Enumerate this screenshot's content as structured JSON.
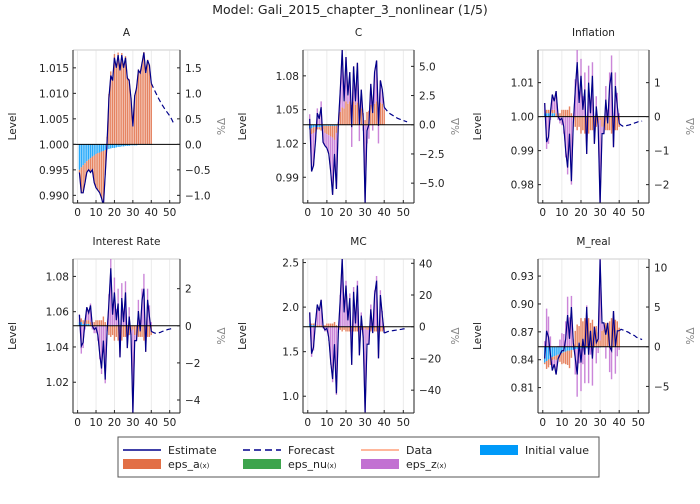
{
  "title": "Model: Gali_2015_chapter_3_nonlinear  (1/5)",
  "colors": {
    "estimate": "#00008b",
    "forecast": "#00008b",
    "data": "#ff9f7a",
    "eps_a": "#e26f46",
    "eps_nu": "#3da44d",
    "eps_z": "#c271d2",
    "initial": "#009af9"
  },
  "legend": {
    "placement": "bottom",
    "items": [
      {
        "key": "estimate",
        "label": "Estimate",
        "sub": "",
        "kind": "line"
      },
      {
        "key": "forecast",
        "label": "Forecast",
        "sub": "",
        "kind": "dash"
      },
      {
        "key": "data",
        "label": "Data",
        "sub": "",
        "kind": "line"
      },
      {
        "key": "initial",
        "label": "Initial value",
        "sub": "",
        "kind": "patch"
      },
      {
        "key": "eps_a",
        "label": "eps_a",
        "sub": "(x)",
        "kind": "patch"
      },
      {
        "key": "eps_nu",
        "label": "eps_nu",
        "sub": "(x)",
        "kind": "patch"
      },
      {
        "key": "eps_z",
        "label": "eps_z",
        "sub": "(x)",
        "kind": "patch"
      }
    ]
  },
  "chart_data": [
    {
      "type": "bar+line",
      "title": "A",
      "ylabel": "Level",
      "ylabel_right": "%Δ",
      "xlim": [
        -2.5,
        55.6
      ],
      "ylim_pct": [
        -1.15,
        1.85
      ],
      "steady_state": 1.0,
      "xticks": [
        "0",
        "10",
        "20",
        "30",
        "40",
        "50"
      ],
      "yticks_left": [
        "0.990",
        "0.995",
        "1.000",
        "1.005",
        "1.010",
        "1.015"
      ],
      "yticks_right": [
        "−1.0",
        "−0.5",
        "0.0",
        "0.5",
        "1.0",
        "1.5"
      ],
      "grid": true,
      "estimate": [
        -0.55,
        -0.95,
        -0.95,
        -0.75,
        -0.55,
        -0.5,
        -0.55,
        -0.5,
        -0.75,
        -0.85,
        -0.9,
        -0.95,
        -1.05,
        -1.2,
        -0.6,
        0.05,
        0.9,
        1.35,
        1.25,
        1.7,
        1.5,
        1.75,
        1.45,
        1.75,
        1.5,
        1.7,
        1.3,
        1.25,
        0.9,
        0.35,
        0.95,
        1.1,
        1.45,
        1.4,
        1.6,
        1.8,
        1.4,
        1.65,
        1.55,
        1.2
      ],
      "forecast": [
        1.2,
        1.12,
        1.04,
        0.97,
        0.9,
        0.83,
        0.77,
        0.71,
        0.66,
        0.61,
        0.56,
        0.5,
        0.42
      ],
      "initial": [
        -0.5,
        -0.45,
        -0.41,
        -0.37,
        -0.33,
        -0.3,
        -0.27,
        -0.24,
        -0.22,
        -0.19,
        -0.17,
        -0.16,
        -0.14,
        -0.13,
        -0.11,
        -0.1,
        -0.09,
        -0.08,
        -0.07,
        -0.07,
        -0.06,
        -0.05,
        -0.05,
        -0.04,
        -0.04,
        -0.03,
        -0.03,
        -0.03,
        -0.02,
        -0.02,
        -0.02,
        -0.02,
        -0.01,
        -0.01,
        -0.01,
        -0.01,
        -0.01,
        -0.01,
        -0.01,
        -0.01
      ],
      "eps_a": [
        -0.05,
        -0.5,
        -0.54,
        -0.38,
        -0.22,
        -0.2,
        -0.28,
        -0.26,
        -0.53,
        -0.66,
        -0.73,
        -0.79,
        -0.91,
        -1.07,
        -0.49,
        0.15,
        0.99,
        1.43,
        1.32,
        1.77,
        1.56,
        1.8,
        1.5,
        1.79,
        1.54,
        1.73,
        1.33,
        1.28,
        0.92,
        0.37,
        0.97,
        1.12,
        1.46,
        1.41,
        1.61,
        1.81,
        1.41,
        1.66,
        1.56,
        1.21
      ],
      "eps_z": []
    },
    {
      "type": "bar+line",
      "title": "C",
      "ylabel": "Level",
      "ylabel_right": "%Δ",
      "xlim": [
        -2.5,
        55.6
      ],
      "ylim_pct": [
        -6.7,
        6.4
      ],
      "steady_state": 1.0366,
      "xticks": [
        "0",
        "10",
        "20",
        "30",
        "40",
        "50"
      ],
      "yticks_left": [
        "0.99",
        "1.02",
        "1.05",
        "1.08"
      ],
      "yticks_right": [
        "−5.0",
        "−2.5",
        "0.0",
        "2.5",
        "5.0"
      ],
      "grid": true,
      "estimate": [
        0.5,
        -4.0,
        -3.5,
        -1.5,
        1.0,
        0.5,
        1.5,
        -1.5,
        -1.8,
        -2.0,
        -2.5,
        -4.0,
        -6.0,
        -2.5,
        -5.5,
        0.0,
        3.0,
        6.4,
        2.0,
        5.8,
        2.5,
        4.5,
        -0.2,
        5.0,
        2.0,
        5.3,
        0.0,
        3.0,
        0.5,
        -6.7,
        -0.5,
        0.0,
        3.5,
        1.0,
        4.5,
        5.5,
        -0.1,
        3.8,
        3.0,
        1.5
      ],
      "forecast": [
        1.5,
        1.3,
        1.1,
        0.95,
        0.85,
        0.75,
        0.65,
        0.55,
        0.48,
        0.42,
        0.36,
        0.3,
        0.25
      ],
      "initial": [
        -0.3,
        -0.3,
        -0.2,
        -0.2,
        -0.2,
        -0.2,
        -0.2,
        -0.1,
        -0.1,
        -0.1,
        -0.1,
        -0.1,
        -0.1,
        -0.1,
        -0.1,
        -0.1,
        0,
        0,
        0,
        0,
        0,
        0,
        0,
        0,
        0,
        0,
        0,
        0,
        0,
        0,
        0,
        0,
        0,
        0,
        0,
        0,
        0,
        0,
        0,
        0
      ],
      "eps_a": [
        -0.1,
        -0.5,
        -0.5,
        -0.4,
        -0.2,
        -0.2,
        -0.3,
        -0.3,
        -0.6,
        -0.7,
        -0.8,
        -0.9,
        -1.0,
        -1.2,
        -0.6,
        0.2,
        1.1,
        1.5,
        1.4,
        2.0,
        1.8,
        2.0,
        1.7,
        2.0,
        1.7,
        1.9,
        1.4,
        1.4,
        1.0,
        0.4,
        1.1,
        1.2,
        1.7,
        1.5,
        1.8,
        2.0,
        1.5,
        1.9,
        1.8,
        1.3
      ],
      "eps_z": [
        0.9,
        -3.2,
        -2.8,
        -0.9,
        1.4,
        0.9,
        2.0,
        -1.1,
        -1.1,
        -1.2,
        -1.6,
        -3.0,
        -4.9,
        -1.2,
        -4.8,
        -0.1,
        1.9,
        4.9,
        0.6,
        3.8,
        0.7,
        2.5,
        -1.9,
        3.0,
        0.3,
        3.4,
        -1.4,
        1.6,
        -0.5,
        -7.1,
        -1.6,
        -1.2,
        1.8,
        -0.5,
        2.7,
        3.5,
        -1.6,
        1.9,
        1.2,
        0.2
      ]
    },
    {
      "type": "bar+line",
      "title": "Inflation",
      "ylabel": "Level",
      "ylabel_right": "%Δ",
      "xlim": [
        -2.5,
        55.6
      ],
      "ylim_pct": [
        -2.54,
        1.96
      ],
      "steady_state": 1.0,
      "xticks": [
        "0",
        "10",
        "20",
        "30",
        "40",
        "50"
      ],
      "yticks_left": [
        "0.98",
        "0.99",
        "1.00",
        "1.01"
      ],
      "yticks_right": [
        "−2",
        "−1",
        "0",
        "1"
      ],
      "grid": true,
      "estimate": [
        0.4,
        -0.75,
        -0.6,
        0.1,
        0.65,
        0.45,
        0.75,
        0.0,
        -0.1,
        -0.05,
        -0.3,
        -1.0,
        -1.5,
        -0.5,
        -1.9,
        -0.2,
        0.8,
        1.6,
        0.4,
        1.2,
        0.2,
        0.8,
        -1.1,
        1.0,
        0.1,
        1.2,
        -0.8,
        0.3,
        -0.3,
        -2.6,
        -0.5,
        -0.5,
        0.5,
        -0.2,
        0.9,
        1.3,
        -0.9,
        0.9,
        0.3,
        -0.2
      ],
      "forecast": [
        -0.2,
        -0.25,
        -0.28,
        -0.27,
        -0.26,
        -0.25,
        -0.23,
        -0.21,
        -0.19,
        -0.17,
        -0.15,
        -0.14,
        -0.13
      ],
      "initial": [
        0.1,
        0.1,
        0.1,
        0.1,
        0.1,
        0.1,
        0,
        0,
        0,
        0,
        0,
        0,
        0,
        0,
        0,
        0,
        0,
        0,
        0,
        0,
        0,
        0,
        0,
        0,
        0,
        0,
        0,
        0,
        0,
        0,
        0,
        0,
        0,
        0,
        0,
        0,
        0,
        0,
        0,
        0
      ],
      "eps_a": [
        0,
        0.1,
        0.1,
        0.1,
        0.1,
        0.1,
        0.1,
        0.1,
        0.1,
        0.2,
        0.2,
        0.2,
        0.2,
        0.3,
        0.1,
        -0.1,
        -0.3,
        -0.4,
        -0.3,
        -0.5,
        -0.4,
        -0.5,
        -0.4,
        -0.5,
        -0.4,
        -0.4,
        -0.3,
        -0.3,
        -0.2,
        -0.1,
        -0.3,
        -0.3,
        -0.4,
        -0.4,
        -0.4,
        -0.5,
        -0.4,
        -0.4,
        -0.4,
        -0.3
      ],
      "eps_z": [
        0.3,
        -0.95,
        -0.8,
        -0.1,
        0.45,
        0.25,
        0.65,
        -0.1,
        -0.2,
        -0.25,
        -0.5,
        -1.2,
        -1.7,
        -0.8,
        -2.0,
        -0.1,
        1.1,
        2.0,
        0.7,
        1.7,
        0.6,
        1.3,
        -0.7,
        1.5,
        0.5,
        1.6,
        -0.5,
        0.6,
        -0.1,
        -2.5,
        -0.2,
        -0.2,
        0.9,
        0.2,
        1.3,
        1.8,
        -0.5,
        1.3,
        0.7,
        0.1
      ]
    },
    {
      "type": "bar+line",
      "title": "Interest Rate",
      "ylabel": "Level",
      "ylabel_right": "%Δ",
      "xlim": [
        -2.5,
        55.6
      ],
      "ylim_pct": [
        -4.7,
        3.6
      ],
      "steady_state": 1.052,
      "xticks": [
        "0",
        "10",
        "20",
        "30",
        "40",
        "50"
      ],
      "yticks_left": [
        "1.02",
        "1.04",
        "1.06",
        "1.08"
      ],
      "yticks_right": [
        "−4",
        "−2",
        "0",
        "2"
      ],
      "grid": true,
      "estimate": [
        0.6,
        -1.1,
        -0.9,
        0.2,
        1.0,
        0.7,
        1.1,
        0.0,
        -0.2,
        -0.1,
        -0.5,
        -1.5,
        -2.3,
        -0.8,
        -2.9,
        -0.3,
        1.2,
        3.1,
        0.6,
        1.8,
        0.3,
        1.2,
        -1.7,
        1.5,
        0.2,
        1.8,
        -1.2,
        0.5,
        -0.5,
        -4.7,
        -0.8,
        -0.8,
        0.8,
        -0.3,
        1.4,
        2.0,
        -1.4,
        1.4,
        0.5,
        -0.3
      ],
      "forecast": [
        -0.3,
        -0.35,
        -0.4,
        -0.4,
        -0.38,
        -0.35,
        -0.3,
        -0.27,
        -0.24,
        -0.2,
        -0.18,
        -0.15,
        -0.13
      ],
      "initial": [
        0.2,
        0.2,
        0.1,
        0.1,
        0.1,
        0.1,
        0,
        0,
        0,
        0,
        0,
        0,
        0,
        0,
        0,
        0,
        0,
        0,
        0,
        0,
        0,
        0,
        0,
        0,
        0,
        0,
        0,
        0,
        0,
        0,
        0,
        0,
        0,
        0,
        0,
        0,
        0,
        0,
        0,
        0
      ],
      "eps_a": [
        0,
        0.2,
        0.2,
        0.2,
        0.2,
        0.2,
        0.2,
        0.2,
        0.2,
        0.3,
        0.3,
        0.3,
        0.3,
        0.5,
        0.2,
        -0.2,
        -0.5,
        -0.6,
        -0.5,
        -0.8,
        -0.6,
        -0.8,
        -0.6,
        -0.8,
        -0.6,
        -0.6,
        -0.5,
        -0.5,
        -0.3,
        -0.2,
        -0.5,
        -0.5,
        -0.6,
        -0.6,
        -0.6,
        -0.8,
        -0.6,
        -0.6,
        -0.6,
        -0.5
      ],
      "eps_z": [
        0.4,
        -1.5,
        -1.2,
        -0.2,
        0.7,
        0.4,
        1.0,
        -0.2,
        -0.4,
        -0.4,
        -0.8,
        -1.8,
        -2.6,
        -1.3,
        -3.1,
        -0.1,
        1.7,
        3.7,
        1.1,
        2.6,
        0.9,
        2.0,
        -1.1,
        2.3,
        0.8,
        2.4,
        -0.7,
        1.0,
        -0.2,
        -4.5,
        -0.3,
        -0.3,
        1.4,
        0.3,
        2.0,
        2.8,
        -0.8,
        2.0,
        1.1,
        0.2
      ]
    },
    {
      "type": "bar+line",
      "title": "MC",
      "ylabel": "Level",
      "ylabel_right": "%Δ",
      "xlim": [
        -2.5,
        55.6
      ],
      "ylim_pct": [
        -54.4,
        42.7
      ],
      "steady_state": 1.78,
      "xticks": [
        "0",
        "10",
        "20",
        "30",
        "40",
        "50"
      ],
      "yticks_left": [
        "1.0",
        "1.5",
        "2.0",
        "2.5"
      ],
      "yticks_right": [
        "−40",
        "−20",
        "0",
        "20",
        "40"
      ],
      "grid": true,
      "estimate": [
        9,
        -17,
        -13,
        2,
        14,
        10,
        17,
        0,
        -2,
        -1,
        -7,
        -22,
        -33,
        -11,
        -42,
        -4,
        18,
        43,
        9,
        26,
        4,
        18,
        -24,
        22,
        2,
        26,
        -18,
        7,
        -7,
        -54,
        -11,
        -11,
        11,
        -4,
        20,
        29,
        -20,
        20,
        7,
        -4
      ],
      "forecast": [
        -4,
        -3.5,
        -3,
        -2.8,
        -2.6,
        -2.4,
        -2.2,
        -2.0,
        -1.8,
        -1.6,
        -1.4,
        -1.3,
        -1.2
      ],
      "initial": [
        2,
        1,
        1,
        1,
        0,
        0,
        0,
        0,
        0,
        0,
        0,
        0,
        0,
        0,
        0,
        0,
        0,
        0,
        0,
        0,
        0,
        0,
        0,
        0,
        0,
        0,
        0,
        0,
        0,
        0,
        0,
        0,
        0,
        0,
        0,
        0,
        0,
        0,
        0,
        0
      ],
      "eps_a": [
        0,
        1,
        1,
        1,
        1,
        1,
        1,
        1,
        1,
        2,
        2,
        2,
        2,
        3,
        1,
        -1,
        -2,
        -3,
        -2,
        -3,
        -3,
        -3,
        -3,
        -3,
        -3,
        -3,
        -2,
        -2,
        -2,
        -1,
        -2,
        -2,
        -3,
        -3,
        -3,
        -3,
        -3,
        -3,
        -3,
        -2
      ],
      "eps_z": [
        7,
        -19,
        -15,
        0,
        13,
        9,
        16,
        -1,
        -3,
        -3,
        -9,
        -24,
        -35,
        -14,
        -43,
        -3,
        20,
        46,
        11,
        29,
        7,
        21,
        -21,
        25,
        5,
        29,
        -16,
        9,
        -5,
        -53,
        -9,
        -9,
        14,
        -1,
        23,
        32,
        -17,
        23,
        10,
        -2
      ]
    },
    {
      "type": "bar+line",
      "title": "M_real",
      "ylabel": "Level",
      "ylabel_right": "%Δ",
      "xlim": [
        -2.5,
        55.6
      ],
      "ylim_pct": [
        -8.35,
        11.05
      ],
      "steady_state": 0.854,
      "xticks": [
        "0",
        "10",
        "20",
        "30",
        "40",
        "50"
      ],
      "yticks_left": [
        "0.81",
        "0.84",
        "0.87",
        "0.90",
        "0.93"
      ],
      "yticks_right": [
        "−5",
        "0",
        "5",
        "10"
      ],
      "grid": true,
      "estimate": [
        -1.5,
        2.0,
        1.2,
        -1.0,
        -3.0,
        -2.2,
        -3.5,
        -1.5,
        -1.0,
        -0.5,
        -0.5,
        1.0,
        4.0,
        1.0,
        5.0,
        0.5,
        -1.5,
        -3.5,
        0.5,
        -2.0,
        1.0,
        -1.0,
        5.0,
        -1.0,
        2.0,
        -1.5,
        2.5,
        0.5,
        1.0,
        11.0,
        3.0,
        3.0,
        1.5,
        3.0,
        0.0,
        -0.5,
        4.5,
        0.0,
        2.0,
        2.0
      ],
      "forecast": [
        2.0,
        2.2,
        2.1,
        2.0,
        1.9,
        1.8,
        1.6,
        1.5,
        1.4,
        1.2,
        1.1,
        1.0,
        0.9
      ],
      "initial": [
        -2.0,
        -1.8,
        -1.6,
        -1.5,
        -1.3,
        -1.2,
        -1.1,
        -1.0,
        -0.9,
        -0.8,
        -0.7,
        -0.6,
        -0.5,
        -0.5,
        -0.4,
        -0.4,
        -0.3,
        -0.3,
        -0.3,
        -0.2,
        -0.2,
        -0.2,
        -0.2,
        -0.1,
        -0.1,
        -0.1,
        -0.1,
        -0.1,
        -0.1,
        -0.1,
        0,
        0,
        0,
        0,
        0,
        0,
        0,
        0,
        0,
        0
      ],
      "eps_a": [
        -0.2,
        -1.0,
        -1.0,
        -0.8,
        -0.4,
        -0.4,
        -0.6,
        -0.6,
        -1.0,
        -1.4,
        -1.4,
        -1.6,
        -1.8,
        -2.2,
        -1.0,
        0.4,
        2.0,
        2.8,
        2.6,
        3.6,
        3.2,
        3.6,
        3.0,
        3.6,
        3.0,
        3.4,
        2.6,
        2.6,
        1.8,
        0.8,
        2.0,
        2.2,
        3.0,
        2.8,
        3.2,
        3.6,
        2.8,
        3.4,
        3.2,
        2.4
      ],
      "eps_z": [
        0.7,
        4.8,
        3.8,
        1.3,
        -1.3,
        -0.6,
        -1.8,
        0.1,
        0.9,
        1.7,
        1.6,
        3.2,
        6.3,
        3.7,
        6.4,
        0.5,
        -3.2,
        -6.0,
        -1.8,
        -5.4,
        -2.0,
        -4.4,
        2.2,
        -4.5,
        -0.9,
        -4.8,
        0.0,
        -2.0,
        -0.7,
        10.3,
        1.0,
        0.8,
        -1.5,
        0.2,
        -3.2,
        -4.1,
        1.7,
        -3.4,
        -1.2,
        -0.4
      ]
    }
  ]
}
